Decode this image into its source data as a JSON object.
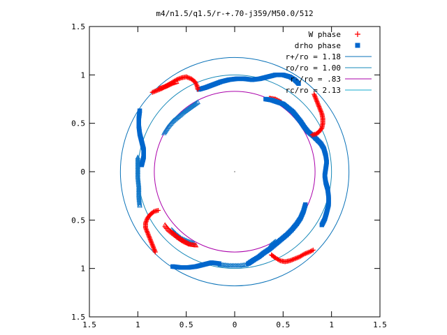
{
  "chart_data": {
    "type": "scatter",
    "title": "m4/n1.5/q1.5/r-+.70-j359/M50.0/512",
    "xlabel": "",
    "ylabel": "",
    "xlim": [
      -1.5,
      1.5
    ],
    "ylim": [
      -1.5,
      1.5
    ],
    "x_ticks": [
      -1.5,
      -1,
      -0.5,
      0,
      0.5,
      1,
      1.5
    ],
    "y_ticks": [
      -1.5,
      -1,
      -0.5,
      0,
      0.5,
      1,
      1.5
    ],
    "x_tick_labels": [
      "1.5",
      "1",
      "0.5",
      "0",
      "0.5",
      "1",
      "1.5"
    ],
    "y_tick_labels": [
      "1.5",
      "1",
      "0.5",
      "0",
      "0.5",
      "1",
      "1.5"
    ],
    "grid": false,
    "legend_position": "top-right",
    "legend": [
      {
        "label": "W phase",
        "marker": "plus",
        "color": "#ff0000"
      },
      {
        "label": "drho phase",
        "marker": "square",
        "color": "#0066cc"
      },
      {
        "label": "r+/ro = 1.18",
        "marker": "line",
        "color": "#0a72b8"
      },
      {
        "label": "ro/ro = 1.00",
        "marker": "line",
        "color": "#1688b8"
      },
      {
        "label": "r-/ro =  .83",
        "marker": "line",
        "color": "#aa00aa"
      },
      {
        "label": "rc/ro = 2.13",
        "marker": "line",
        "color": "#11aacc"
      }
    ],
    "circles": [
      {
        "name": "r+/ro",
        "r": 1.18,
        "color": "#0a72b8"
      },
      {
        "name": "ro/ro",
        "r": 1.0,
        "color": "#1688b8"
      },
      {
        "name": "r-/ro",
        "r": 0.83,
        "color": "#aa00aa"
      }
    ],
    "series": [
      {
        "name": "W phase",
        "marker": "plus",
        "color": "#ff0000",
        "points": [
          [
            -0.85,
            0.82
          ],
          [
            -0.8,
            0.84
          ],
          [
            -0.75,
            0.86
          ],
          [
            -0.7,
            0.89
          ],
          [
            -0.65,
            0.92
          ],
          [
            -0.6,
            0.95
          ],
          [
            -0.55,
            0.97
          ],
          [
            -0.5,
            0.98
          ],
          [
            -0.45,
            0.96
          ],
          [
            -0.41,
            0.93
          ],
          [
            -0.39,
            0.89
          ],
          [
            -0.38,
            0.85
          ],
          [
            0.82,
            0.8
          ],
          [
            0.84,
            0.75
          ],
          [
            0.86,
            0.7
          ],
          [
            0.88,
            0.65
          ],
          [
            0.9,
            0.6
          ],
          [
            0.91,
            0.55
          ],
          [
            0.91,
            0.5
          ],
          [
            0.9,
            0.45
          ],
          [
            0.87,
            0.41
          ],
          [
            0.84,
            0.39
          ],
          [
            0.8,
            0.38
          ],
          [
            -0.82,
            -0.83
          ],
          [
            -0.84,
            -0.78
          ],
          [
            -0.86,
            -0.73
          ],
          [
            -0.88,
            -0.68
          ],
          [
            -0.9,
            -0.63
          ],
          [
            -0.92,
            -0.58
          ],
          [
            -0.92,
            -0.53
          ],
          [
            -0.9,
            -0.48
          ],
          [
            -0.87,
            -0.44
          ],
          [
            -0.83,
            -0.41
          ],
          [
            -0.79,
            -0.4
          ],
          [
            0.38,
            -0.86
          ],
          [
            0.42,
            -0.89
          ],
          [
            0.47,
            -0.92
          ],
          [
            0.52,
            -0.93
          ],
          [
            0.57,
            -0.92
          ],
          [
            0.62,
            -0.9
          ],
          [
            0.67,
            -0.88
          ],
          [
            0.72,
            -0.85
          ],
          [
            0.77,
            -0.83
          ],
          [
            0.81,
            -0.81
          ]
        ]
      },
      {
        "name": "drho phase",
        "marker": "square",
        "color": "#0066cc",
        "points": [
          [
            -0.37,
            0.85
          ],
          [
            -0.3,
            0.87
          ],
          [
            -0.22,
            0.9
          ],
          [
            -0.14,
            0.93
          ],
          [
            -0.06,
            0.95
          ],
          [
            0.02,
            0.96
          ],
          [
            0.1,
            0.96
          ],
          [
            0.18,
            0.95
          ],
          [
            0.26,
            0.96
          ],
          [
            0.34,
            0.98
          ],
          [
            0.42,
            1.0
          ],
          [
            0.5,
            1.0
          ],
          [
            0.57,
            0.98
          ],
          [
            0.62,
            0.95
          ],
          [
            0.66,
            0.91
          ],
          [
            -0.98,
            0.63
          ],
          [
            -0.99,
            0.55
          ],
          [
            -0.99,
            0.47
          ],
          [
            -0.98,
            0.39
          ],
          [
            -0.96,
            0.31
          ],
          [
            -0.94,
            0.23
          ],
          [
            -0.94,
            0.15
          ],
          [
            -0.96,
            0.07
          ],
          [
            0.32,
            0.75
          ],
          [
            0.38,
            0.74
          ],
          [
            0.44,
            0.72
          ],
          [
            0.5,
            0.7
          ],
          [
            0.55,
            0.66
          ],
          [
            0.6,
            0.62
          ],
          [
            0.64,
            0.57
          ],
          [
            0.68,
            0.52
          ],
          [
            0.72,
            0.46
          ],
          [
            0.76,
            0.41
          ],
          [
            0.81,
            0.37
          ],
          [
            0.85,
            0.33
          ],
          [
            0.89,
            0.29
          ],
          [
            0.92,
            0.24
          ],
          [
            0.94,
            0.17
          ],
          [
            0.95,
            0.1
          ],
          [
            0.94,
            0.03
          ],
          [
            0.93,
            -0.04
          ],
          [
            0.94,
            -0.11
          ],
          [
            0.96,
            -0.18
          ],
          [
            0.97,
            -0.26
          ],
          [
            0.97,
            -0.34
          ],
          [
            0.95,
            -0.42
          ],
          [
            0.93,
            -0.49
          ],
          [
            0.9,
            -0.55
          ],
          [
            0.73,
            -0.34
          ],
          [
            0.71,
            -0.41
          ],
          [
            0.68,
            -0.48
          ],
          [
            0.64,
            -0.54
          ],
          [
            0.59,
            -0.6
          ],
          [
            0.54,
            -0.65
          ],
          [
            0.48,
            -0.7
          ],
          [
            0.42,
            -0.75
          ],
          [
            0.36,
            -0.8
          ],
          [
            0.3,
            -0.84
          ],
          [
            0.25,
            -0.88
          ],
          [
            0.2,
            -0.91
          ],
          [
            0.14,
            -0.95
          ],
          [
            -0.64,
            -0.98
          ],
          [
            -0.56,
            -0.99
          ],
          [
            -0.48,
            -0.99
          ],
          [
            -0.4,
            -0.98
          ],
          [
            -0.32,
            -0.96
          ],
          [
            -0.24,
            -0.94
          ],
          [
            -0.16,
            -0.95
          ]
        ]
      },
      {
        "name": "W phase (open)",
        "marker": "open-triangle",
        "color": "#ff0000",
        "points": [
          [
            -0.78,
            0.86
          ],
          [
            -0.72,
            0.88
          ],
          [
            -0.66,
            0.91
          ],
          [
            -0.6,
            0.93
          ],
          [
            -0.72,
            -0.55
          ],
          [
            -0.68,
            -0.6
          ],
          [
            -0.63,
            -0.64
          ],
          [
            -0.58,
            -0.68
          ],
          [
            -0.52,
            -0.72
          ],
          [
            -0.46,
            -0.75
          ],
          [
            -0.4,
            -0.76
          ],
          [
            0.36,
            0.76
          ],
          [
            0.42,
            0.75
          ],
          [
            0.48,
            0.72
          ]
        ]
      },
      {
        "name": "drho phase (open)",
        "marker": "open-triangle",
        "color": "#1077c8",
        "points": [
          [
            -0.38,
            0.72
          ],
          [
            -0.45,
            0.67
          ],
          [
            -0.52,
            0.62
          ],
          [
            -0.58,
            0.57
          ],
          [
            -0.64,
            0.52
          ],
          [
            -0.69,
            0.46
          ],
          [
            -0.73,
            0.4
          ],
          [
            -1.0,
            0.15
          ],
          [
            -1.0,
            0.05
          ],
          [
            -1.0,
            -0.05
          ],
          [
            -0.99,
            -0.15
          ],
          [
            -0.99,
            -0.25
          ],
          [
            -0.98,
            -0.35
          ],
          [
            -0.65,
            -0.6
          ],
          [
            -0.6,
            -0.65
          ],
          [
            -0.55,
            -0.69
          ],
          [
            -0.48,
            -0.72
          ],
          [
            -0.42,
            -0.74
          ],
          [
            -0.15,
            -0.96
          ],
          [
            -0.05,
            -0.97
          ],
          [
            0.05,
            -0.97
          ],
          [
            0.12,
            -0.96
          ],
          [
            0.42,
            -0.72
          ],
          [
            0.37,
            -0.76
          ]
        ]
      }
    ]
  }
}
